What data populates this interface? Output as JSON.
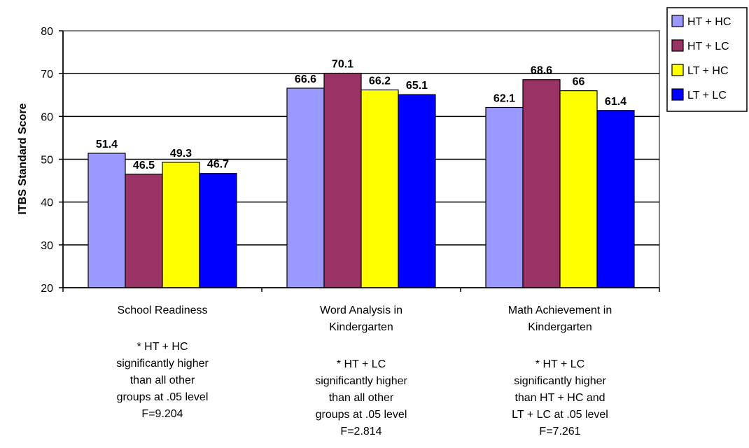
{
  "chart_data": {
    "type": "bar",
    "ylabel": "ITBS Standard Score",
    "ylim": [
      20,
      80
    ],
    "yticks": [
      20,
      30,
      40,
      50,
      60,
      70,
      80
    ],
    "grid": true,
    "legend_position": "top-right",
    "categories": [
      [
        "School Readiness"
      ],
      [
        "Word Analysis in",
        "Kindergarten"
      ],
      [
        "Math Achievement in",
        "Kindergarten"
      ]
    ],
    "notes": [
      [
        "* HT + HC",
        "significantly higher",
        "than all other",
        "groups at .05 level",
        "F=9.204"
      ],
      [
        "* HT + LC",
        "significantly higher",
        "than all other",
        "groups at .05 level",
        "F=2.814"
      ],
      [
        "* HT + LC",
        "significantly higher",
        "than HT + HC and",
        "LT + LC at .05 level",
        "F=7.261"
      ]
    ],
    "series": [
      {
        "name": "HT + HC",
        "color": "#9999FF",
        "values": [
          51.4,
          66.6,
          62.1
        ],
        "labels": [
          "51.4",
          "66.6",
          "62.1"
        ]
      },
      {
        "name": "HT + LC",
        "color": "#993366",
        "values": [
          46.5,
          70.1,
          68.6
        ],
        "labels": [
          "46.5",
          "70.1",
          "68.6"
        ]
      },
      {
        "name": "LT + HC",
        "color": "#FFFF00",
        "values": [
          49.3,
          66.2,
          66
        ],
        "labels": [
          "49.3",
          "66.2",
          "66"
        ]
      },
      {
        "name": "LT + LC",
        "color": "#0000FF",
        "values": [
          46.7,
          65.1,
          61.4
        ],
        "labels": [
          "46.7",
          "65.1",
          "61.4"
        ]
      }
    ]
  }
}
